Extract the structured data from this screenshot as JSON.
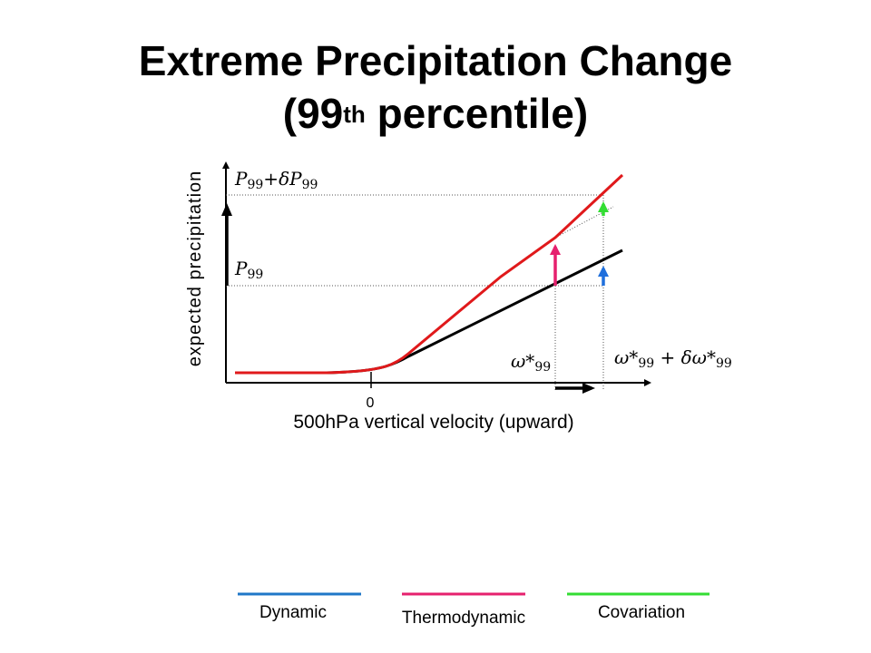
{
  "title": {
    "line1": "Extreme Precipitation Change",
    "line2_main": "(99",
    "line2_sup": "th",
    "line2_end": " percentile)"
  },
  "axes": {
    "ylabel": "expected precipitation",
    "xlabel": "500hPa vertical velocity (upward)",
    "zero_tick": "0"
  },
  "labels": {
    "p99_shift": {
      "main": "P",
      "sub1": "99",
      "plus": "+",
      "delta": "δP",
      "sub2": "99"
    },
    "p99": {
      "main": "P",
      "sub": "99"
    },
    "omega": {
      "main": "ω*",
      "sub": "99"
    },
    "omega_shift": {
      "main": "ω*",
      "sub1": "99",
      "plus": " + ",
      "delta": "δω*",
      "sub2": "99"
    }
  },
  "legend": [
    {
      "label": "Dynamic",
      "color": "#1f77c8"
    },
    {
      "label": "Thermodynamic",
      "color": "#e6206e"
    },
    {
      "label": "Covariation",
      "color": "#33dd33"
    }
  ],
  "colors": {
    "baseline_curve": "#000000",
    "warmed_curve": "#e0191b",
    "dynamic": "#1f6fdc",
    "thermodynamic": "#e6206e",
    "covariation": "#33dd33"
  }
}
